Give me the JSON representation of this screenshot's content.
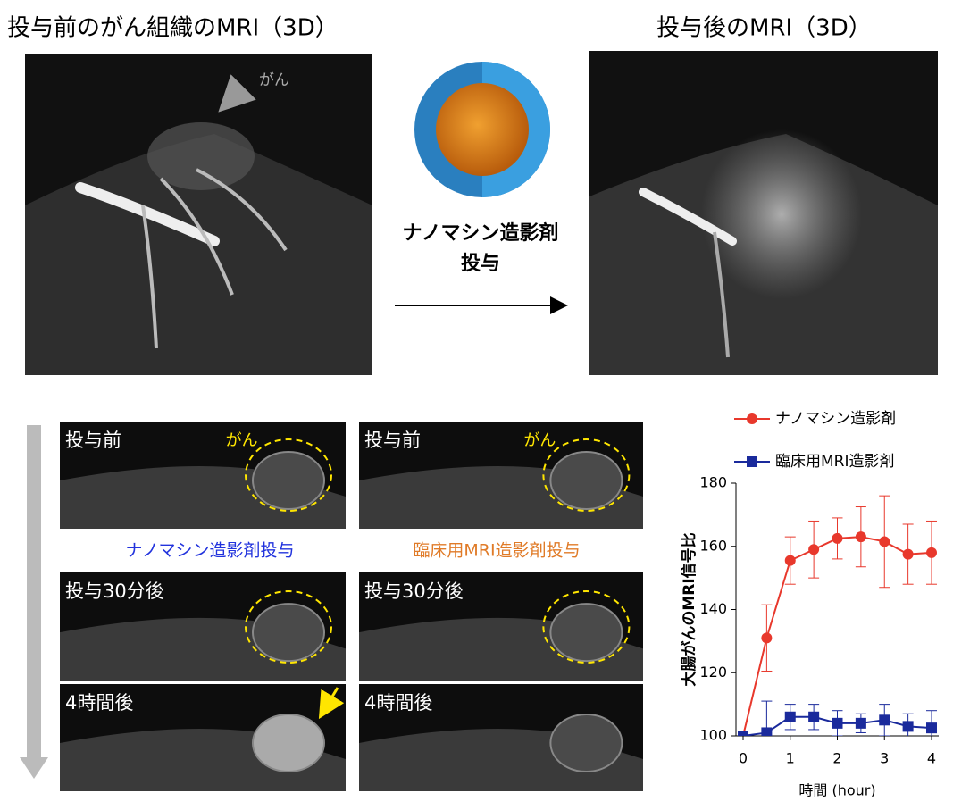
{
  "header": {
    "left_title": "投与前のがん組織のMRI（3D）",
    "right_title": "投与後のMRI（3D）",
    "cancer_label": "がん",
    "agent_line1": "ナノマシン造影剤",
    "agent_line2": "投与"
  },
  "panels": {
    "captions": [
      "ナノマシン造影剤投与",
      "臨床用MRI造影剤投与"
    ],
    "left": [
      "投与前",
      "投与30分後",
      "4時間後"
    ],
    "right": [
      "投与前",
      "投与30分後",
      "4時間後"
    ],
    "cancer_left": "がん",
    "cancer_right": "がん"
  },
  "chart_data": {
    "type": "line",
    "x_label": "時間 (hour)",
    "y_label": "大腸がんのMRI信号比",
    "x": [
      0,
      0.5,
      1,
      1.5,
      2,
      2.5,
      3,
      3.5,
      4
    ],
    "series": [
      {
        "name": "ナノマシン造影剤",
        "color": "#e8382c",
        "marker": "circle",
        "values": [
          100,
          131,
          155.5,
          159,
          162.5,
          163,
          161.5,
          157.5,
          158
        ],
        "errors": [
          0,
          10.5,
          7.5,
          9,
          6.5,
          9.5,
          14.5,
          9.5,
          10
        ]
      },
      {
        "name": "臨床用MRI造影剤",
        "color": "#1a2a9c",
        "marker": "square",
        "values": [
          100,
          101,
          106,
          106,
          104,
          104,
          105,
          103,
          102.5
        ],
        "errors": [
          0,
          10,
          4,
          4,
          4,
          3,
          5,
          4,
          5.5
        ]
      }
    ],
    "xlim": [
      0,
      4
    ],
    "xticks": [
      0,
      1,
      2,
      3,
      4
    ],
    "ylim": [
      100,
      180
    ],
    "yticks": [
      100,
      120,
      140,
      160,
      180
    ],
    "grid": false,
    "legend": "top"
  }
}
